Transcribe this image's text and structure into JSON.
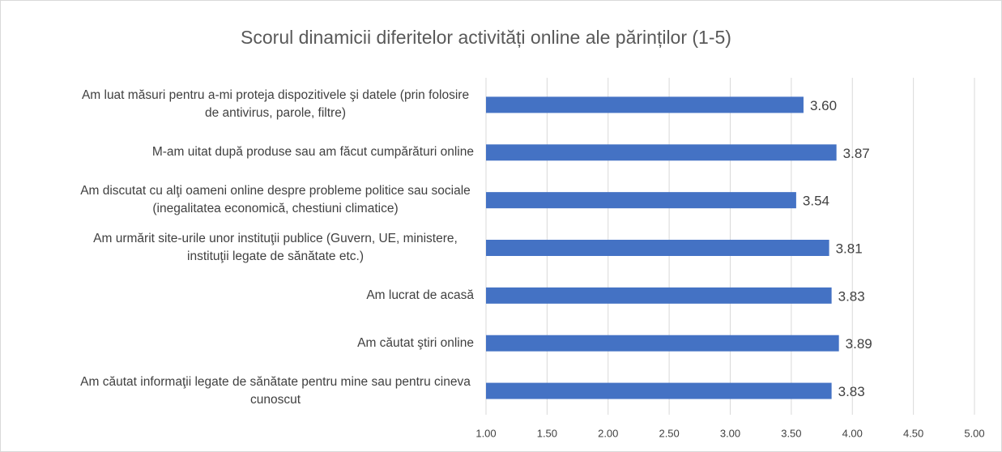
{
  "chart_data": {
    "type": "barh",
    "title": "Scorul dinamicii diferitelor activități online ale părinților (1-5)",
    "categories": [
      "Am luat măsuri pentru a-mi proteja dispozitivele şi datele (prin folosire de antivirus, parole, filtre)",
      "M-am uitat după produse sau am făcut cumpărături online",
      "Am discutat cu alţi oameni online despre probleme politice sau sociale (inegalitatea economică, chestiuni climatice)",
      "Am urmărit site-urile unor instituţii publice (Guvern, UE, ministere, instituţii legate de sănătate etc.)",
      "Am lucrat de acasă",
      "Am căutat ştiri online",
      "Am căutat informaţii legate de sănătate pentru mine sau pentru cineva cunoscut"
    ],
    "values": [
      3.6,
      3.87,
      3.54,
      3.81,
      3.83,
      3.89,
      3.83
    ],
    "value_labels": [
      "3.60",
      "3.87",
      "3.54",
      "3.81",
      "3.83",
      "3.89",
      "3.83"
    ],
    "color": "#4472c4",
    "xlim": [
      1,
      5
    ],
    "xticks": [
      {
        "value": 1,
        "label": "1.00"
      },
      {
        "value": 1.5,
        "label": "1.50"
      },
      {
        "value": 2,
        "label": "2.00"
      },
      {
        "value": 2.5,
        "label": "2.50"
      },
      {
        "value": 3,
        "label": "3.00"
      },
      {
        "value": 3.5,
        "label": "3.50"
      },
      {
        "value": 4,
        "label": "4.00"
      },
      {
        "value": 4.5,
        "label": "4.50"
      },
      {
        "value": 5,
        "label": "5.00"
      }
    ],
    "grid": true
  }
}
